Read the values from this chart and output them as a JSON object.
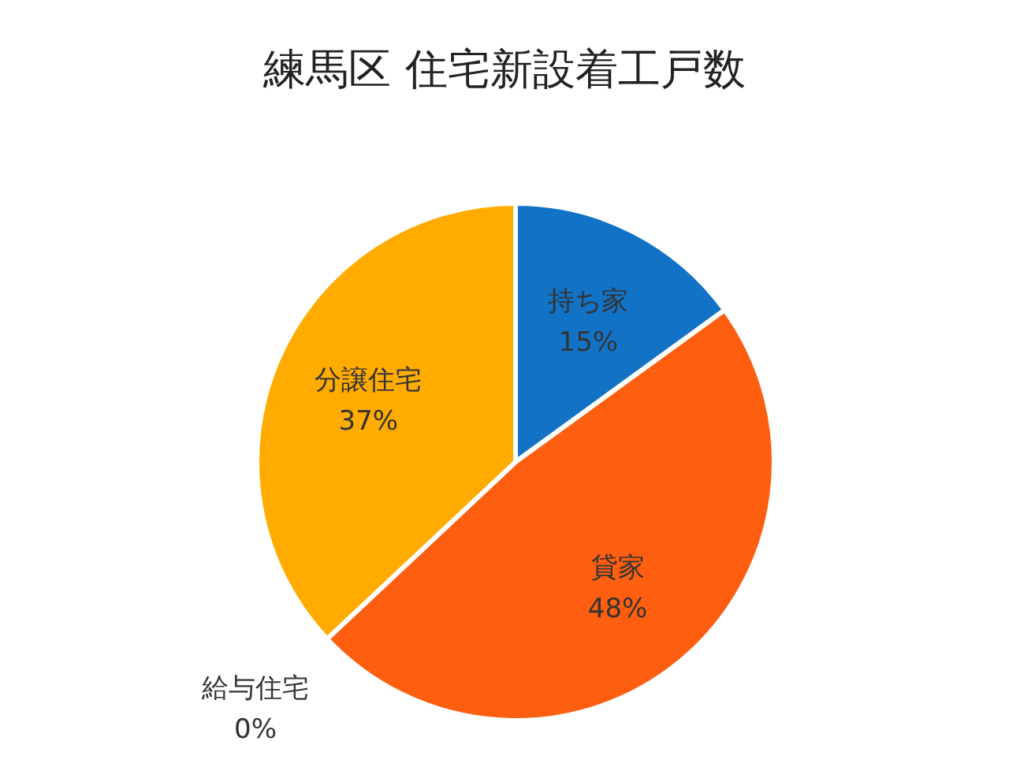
{
  "chart_data": {
    "type": "pie",
    "title": "練馬区 住宅新設着工戸数",
    "categories": [
      "持ち家",
      "貸家",
      "給与住宅",
      "分譲住宅"
    ],
    "values": [
      15,
      48,
      0,
      37
    ],
    "colors": [
      "#1273c6",
      "#fd5e0f",
      "#a5a5a5",
      "#ffab00"
    ],
    "value_labels": [
      "15%",
      "48%",
      "0%",
      "37%"
    ],
    "legend": false
  }
}
